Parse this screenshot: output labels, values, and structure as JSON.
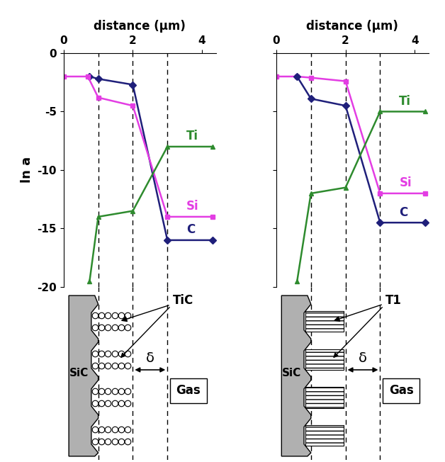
{
  "chart_data": [
    {
      "type": "line",
      "xlabel": "distance (µm)",
      "ylabel": "ln a",
      "xlim": [
        0,
        4.4
      ],
      "xticks": [
        0,
        2,
        4
      ],
      "ylim": [
        -20,
        0
      ],
      "yticks": [
        0,
        -5,
        -10,
        -15,
        -20
      ],
      "grid": false,
      "vlines": [
        1,
        2,
        3
      ],
      "series": [
        {
          "name": "C",
          "color": "#1f1f7a",
          "marker": "diamond",
          "x": [
            0.75,
            1,
            2,
            3,
            4.3
          ],
          "values": [
            -2,
            -2.2,
            -2.7,
            -16,
            -16
          ]
        },
        {
          "name": "Si",
          "color": "#e33de3",
          "marker": "square",
          "x": [
            0,
            0.7,
            1,
            2,
            3,
            4.3
          ],
          "values": [
            -2,
            -2,
            -3.8,
            -4.5,
            -14,
            -14
          ]
        },
        {
          "name": "Ti",
          "color": "#2e8b2e",
          "marker": "triangle",
          "x": [
            0.75,
            1,
            2,
            3,
            4.3
          ],
          "values": [
            -19.5,
            -14,
            -13.5,
            -8,
            -8
          ]
        }
      ],
      "diagram": {
        "substrate": "SiC",
        "product": "TiC",
        "gap": "δ",
        "gas": "Gas"
      }
    },
    {
      "type": "line",
      "xlabel": "distance (µm)",
      "tick_labels": "x",
      "xlim": [
        0,
        4.4
      ],
      "xticks": [
        0,
        2,
        4
      ],
      "ylim": [
        -20,
        0
      ],
      "yticks": [
        0,
        -5,
        -10,
        -15,
        -20
      ],
      "grid": false,
      "vlines": [
        1,
        2,
        3
      ],
      "series": [
        {
          "name": "Si",
          "color": "#e33de3",
          "marker": "square",
          "x": [
            0,
            0.6,
            1,
            2,
            3,
            4.3
          ],
          "values": [
            -2,
            -2,
            -2.1,
            -2.4,
            -12,
            -12
          ]
        },
        {
          "name": "C",
          "color": "#1f1f7a",
          "marker": "diamond",
          "x": [
            0.6,
            1,
            2,
            3,
            4.3
          ],
          "values": [
            -2,
            -3.9,
            -4.5,
            -14.5,
            -14.5
          ]
        },
        {
          "name": "Ti",
          "color": "#2e8b2e",
          "marker": "triangle",
          "x": [
            0.6,
            1,
            2,
            3,
            4.3
          ],
          "values": [
            -19.5,
            -12,
            -11.5,
            -5,
            -5
          ]
        }
      ],
      "diagram": {
        "substrate": "SiC",
        "product": "T1",
        "gap": "δ",
        "gas": "Gas"
      }
    }
  ]
}
